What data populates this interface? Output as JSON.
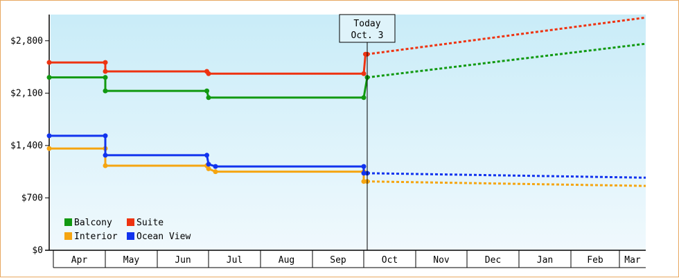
{
  "chart_data": {
    "type": "line",
    "title": "",
    "xlabel": "",
    "ylabel": "",
    "ylim": [
      0,
      3150
    ],
    "y_ticks": [
      {
        "value": 0,
        "label": "$0"
      },
      {
        "value": 700,
        "label": "$700"
      },
      {
        "value": 1400,
        "label": "$1,400"
      },
      {
        "value": 2100,
        "label": "$2,100"
      },
      {
        "value": 2800,
        "label": "$2,800"
      }
    ],
    "months": [
      "Apr",
      "May",
      "Jun",
      "Jul",
      "Aug",
      "Sep",
      "Oct",
      "Nov",
      "Dec",
      "Jan",
      "Feb",
      "Mar"
    ],
    "today_marker": {
      "line1": "Today",
      "line2": "Oct. 3"
    },
    "legend_position": "bottom-left",
    "grid": false,
    "series": [
      {
        "name": "Balcony",
        "color": "#119911",
        "history": [
          [
            "Apr 1",
            2310
          ],
          [
            "May 1",
            2310
          ],
          [
            "May 1",
            2130
          ],
          [
            "Jun 30",
            2130
          ],
          [
            "Jul 1",
            2040
          ],
          [
            "Oct 1",
            2040
          ],
          [
            "Oct 3",
            2310
          ]
        ],
        "forecast": [
          [
            "Oct 3",
            2310
          ],
          [
            "Apr 1",
            2760
          ]
        ]
      },
      {
        "name": "Suite",
        "color": "#ee3311",
        "history": [
          [
            "Apr 1",
            2510
          ],
          [
            "May 1",
            2510
          ],
          [
            "May 1",
            2390
          ],
          [
            "Jun 30",
            2390
          ],
          [
            "Jul 1",
            2360
          ],
          [
            "Oct 1",
            2360
          ],
          [
            "Oct 2",
            2620
          ],
          [
            "Oct 3",
            2620
          ]
        ],
        "forecast": [
          [
            "Oct 3",
            2620
          ],
          [
            "Apr 1",
            3110
          ]
        ]
      },
      {
        "name": "Interior",
        "color": "#f5a511",
        "history": [
          [
            "Apr 1",
            1360
          ],
          [
            "May 1",
            1360
          ],
          [
            "May 1",
            1130
          ],
          [
            "Jun 30",
            1130
          ],
          [
            "Jul 1",
            1090
          ],
          [
            "Jul 5",
            1050
          ],
          [
            "Oct 1",
            1050
          ],
          [
            "Oct 1",
            920
          ],
          [
            "Oct 3",
            920
          ]
        ],
        "forecast": [
          [
            "Oct 3",
            920
          ],
          [
            "Apr 1",
            860
          ]
        ]
      },
      {
        "name": "Ocean View",
        "color": "#1133ee",
        "history": [
          [
            "Apr 1",
            1530
          ],
          [
            "May 1",
            1530
          ],
          [
            "May 1",
            1270
          ],
          [
            "Jun 30",
            1270
          ],
          [
            "Jul 1",
            1150
          ],
          [
            "Jul 5",
            1120
          ],
          [
            "Oct 1",
            1120
          ],
          [
            "Oct 1",
            1030
          ],
          [
            "Oct 3",
            1030
          ]
        ],
        "forecast": [
          [
            "Oct 3",
            1030
          ],
          [
            "Apr 1",
            970
          ]
        ]
      }
    ]
  }
}
